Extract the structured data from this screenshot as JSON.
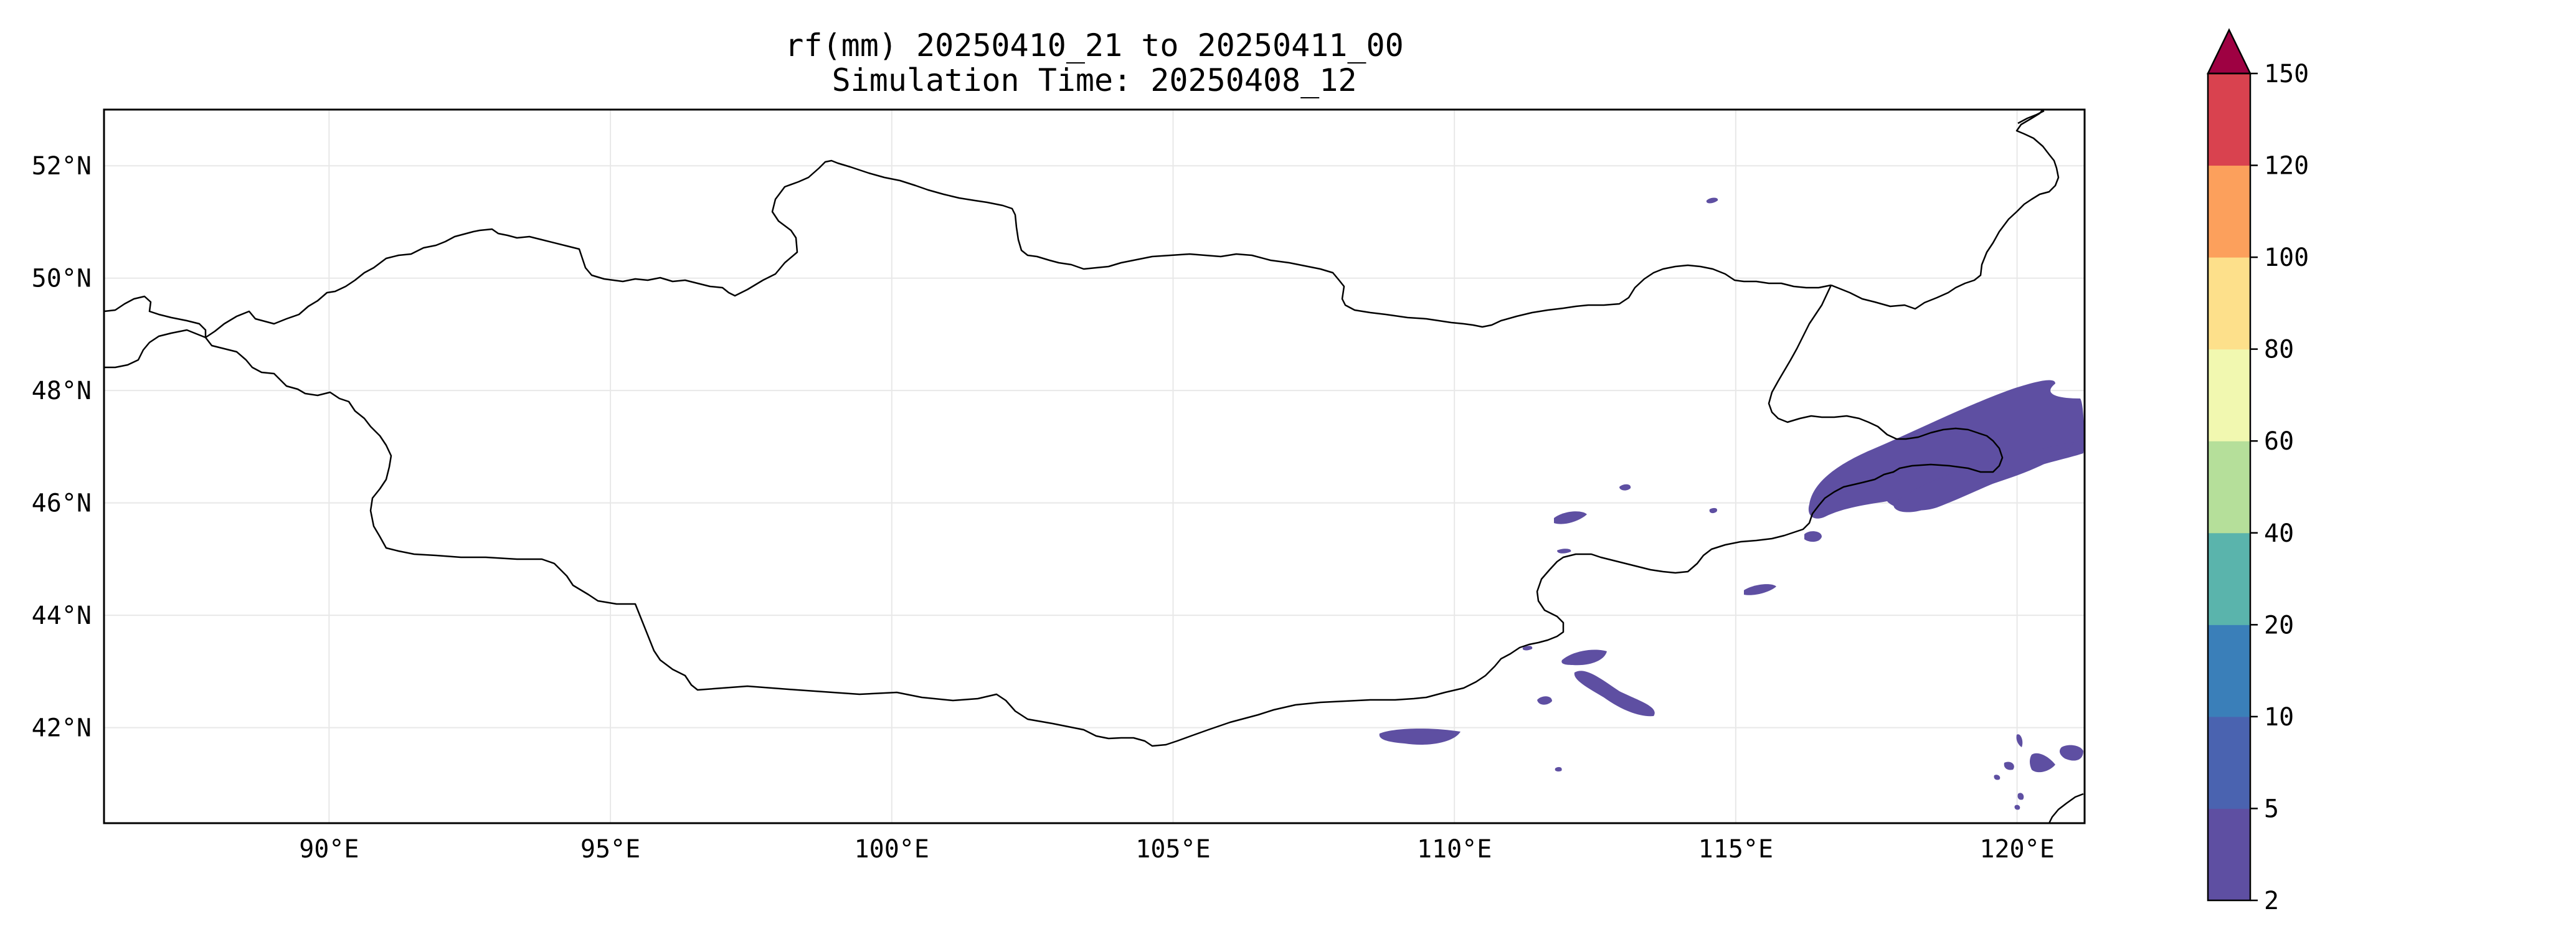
{
  "title": {
    "line1": "rf(mm) 20250410_21 to 20250411_00",
    "line2": "Simulation Time: 20250408_12"
  },
  "map": {
    "lon_range": [
      86,
      121.2
    ],
    "lat_range": [
      40.3,
      53.0
    ],
    "lon_ticks": [
      {
        "value": 90,
        "label": "90°E"
      },
      {
        "value": 95,
        "label": "95°E"
      },
      {
        "value": 100,
        "label": "100°E"
      },
      {
        "value": 105,
        "label": "105°E"
      },
      {
        "value": 110,
        "label": "110°E"
      },
      {
        "value": 115,
        "label": "115°E"
      },
      {
        "value": 120,
        "label": "120°E"
      }
    ],
    "lat_ticks": [
      {
        "value": 42,
        "label": "42°N"
      },
      {
        "value": 44,
        "label": "44°N"
      },
      {
        "value": 46,
        "label": "46°N"
      },
      {
        "value": 48,
        "label": "48°N"
      },
      {
        "value": 50,
        "label": "50°N"
      },
      {
        "value": 52,
        "label": "52°N"
      }
    ],
    "gridlines": true,
    "border_color": "#000000",
    "rain_color": "#5e4fa2"
  },
  "colorbar": {
    "boundaries": [
      2,
      5,
      10,
      20,
      40,
      60,
      80,
      100,
      120,
      150
    ],
    "labels": [
      "2",
      "5",
      "10",
      "20",
      "40",
      "60",
      "80",
      "100",
      "120",
      "150"
    ],
    "colors": [
      "#5e4fa2",
      "#4a63b0",
      "#3a7fb9",
      "#5ab4ac",
      "#b5df9a",
      "#f1f8b0",
      "#fde08b",
      "#fca05c",
      "#d9424f"
    ],
    "extend_color": "#9e0142",
    "extend": "max"
  }
}
